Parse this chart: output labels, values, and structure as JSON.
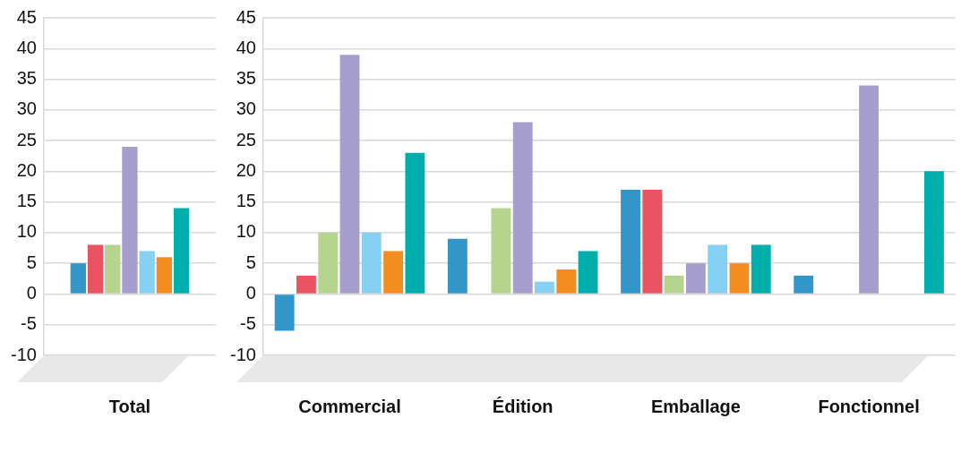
{
  "chart_data": [
    {
      "type": "bar",
      "categories": [
        "Total"
      ],
      "series": [
        {
          "color": "#3296c8",
          "values": [
            5
          ]
        },
        {
          "color": "#e85462",
          "values": [
            8
          ]
        },
        {
          "color": "#b5d48d",
          "values": [
            8
          ]
        },
        {
          "color": "#a69ecc",
          "values": [
            24
          ]
        },
        {
          "color": "#86d0f4",
          "values": [
            7
          ]
        },
        {
          "color": "#f28d22",
          "values": [
            6
          ]
        },
        {
          "color": "#00aeac",
          "values": [
            14
          ]
        }
      ],
      "ylim": [
        -10,
        45
      ],
      "yticks": [
        -10,
        -5,
        0,
        5,
        10,
        15,
        20,
        25,
        30,
        35,
        40,
        45
      ],
      "grid": "y",
      "legend": false
    },
    {
      "type": "bar",
      "categories": [
        "Commercial",
        "Édition",
        "Emballage",
        "Fonctionnel"
      ],
      "series": [
        {
          "color": "#3296c8",
          "values": [
            -6,
            9,
            17,
            3
          ]
        },
        {
          "color": "#e85462",
          "values": [
            3,
            0,
            17,
            0
          ]
        },
        {
          "color": "#b5d48d",
          "values": [
            10,
            14,
            3,
            0
          ]
        },
        {
          "color": "#a69ecc",
          "values": [
            39,
            28,
            5,
            34
          ]
        },
        {
          "color": "#86d0f4",
          "values": [
            10,
            2,
            8,
            0
          ]
        },
        {
          "color": "#f28d22",
          "values": [
            7,
            4,
            5,
            0
          ]
        },
        {
          "color": "#00aeac",
          "values": [
            23,
            7,
            8,
            20
          ]
        }
      ],
      "ylim": [
        -10,
        45
      ],
      "yticks": [
        -10,
        -5,
        0,
        5,
        10,
        15,
        20,
        25,
        30,
        35,
        40,
        45
      ],
      "grid": "y",
      "legend": false
    }
  ]
}
